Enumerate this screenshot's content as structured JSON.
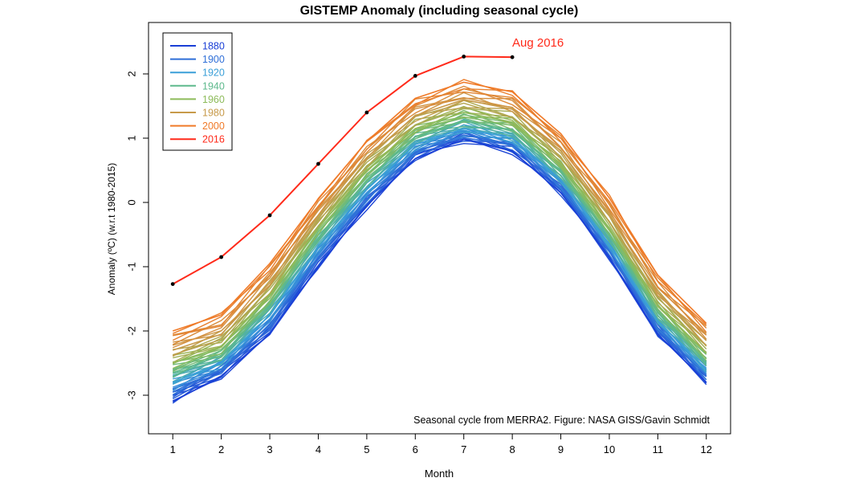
{
  "chart_data": {
    "type": "line",
    "title": "GISTEMP Anomaly (including seasonal cycle)",
    "xlabel": "Month",
    "ylabel": "Anomaly (ºC) (w.r.t 1980-2015)",
    "xlim": [
      0.5,
      12.5
    ],
    "ylim": [
      -3.6,
      2.8
    ],
    "x_ticks": [
      1,
      2,
      3,
      4,
      5,
      6,
      7,
      8,
      9,
      10,
      11,
      12
    ],
    "y_ticks": [
      -3,
      -2,
      -1,
      0,
      1,
      2
    ],
    "grid": false,
    "legend_position": "top-left",
    "annotation": "Seasonal cycle from MERRA2. Figure: NASA GISS/Gavin Schmidt",
    "highlight_label": "Aug 2016",
    "highlight_color": "#ff2a1a",
    "legend": [
      {
        "label": "1880",
        "color": "#1a3fd6"
      },
      {
        "label": "1900",
        "color": "#2f6fd8"
      },
      {
        "label": "1920",
        "color": "#3a9fd8"
      },
      {
        "label": "1940",
        "color": "#5db98c"
      },
      {
        "label": "1960",
        "color": "#8dbb5a"
      },
      {
        "label": "1980",
        "color": "#c79a4a"
      },
      {
        "label": "2000",
        "color": "#f07a28"
      },
      {
        "label": "2016",
        "color": "#ff2a1a"
      }
    ],
    "series": [
      {
        "name": "1880",
        "color": "#1a3fd6",
        "values": [
          -3.1,
          -2.7,
          -2.05,
          -1.0,
          -0.05,
          0.68,
          0.98,
          0.8,
          0.15,
          -0.85,
          -2.05,
          -2.8
        ]
      },
      {
        "name": "1900",
        "color": "#2f6fd8",
        "values": [
          -2.95,
          -2.6,
          -1.9,
          -0.85,
          0.05,
          0.78,
          1.05,
          0.9,
          0.25,
          -0.75,
          -1.95,
          -2.7
        ]
      },
      {
        "name": "1920",
        "color": "#3a9fd8",
        "values": [
          -2.8,
          -2.5,
          -1.75,
          -0.7,
          0.2,
          0.9,
          1.15,
          1.0,
          0.35,
          -0.65,
          -1.85,
          -2.6
        ]
      },
      {
        "name": "1940",
        "color": "#5db98c",
        "values": [
          -2.65,
          -2.38,
          -1.6,
          -0.55,
          0.35,
          1.02,
          1.27,
          1.12,
          0.47,
          -0.52,
          -1.72,
          -2.48
        ]
      },
      {
        "name": "1960",
        "color": "#8dbb5a",
        "values": [
          -2.5,
          -2.25,
          -1.45,
          -0.4,
          0.5,
          1.15,
          1.4,
          1.25,
          0.6,
          -0.4,
          -1.6,
          -2.35
        ]
      },
      {
        "name": "1980",
        "color": "#c79a4a",
        "values": [
          -2.3,
          -2.05,
          -1.25,
          -0.2,
          0.7,
          1.35,
          1.6,
          1.45,
          0.8,
          -0.2,
          -1.4,
          -2.15
        ]
      },
      {
        "name": "2000",
        "color": "#f07a28",
        "values": [
          -2.0,
          -1.75,
          -0.95,
          0.05,
          0.95,
          1.62,
          1.87,
          1.72,
          1.07,
          0.07,
          -1.13,
          -1.88
        ]
      },
      {
        "name": "2016",
        "color": "#ff2a1a",
        "values": [
          -1.27,
          -0.85,
          -0.2,
          0.6,
          1.4,
          1.97,
          2.27,
          2.26,
          null,
          null,
          null,
          null
        ]
      }
    ]
  }
}
